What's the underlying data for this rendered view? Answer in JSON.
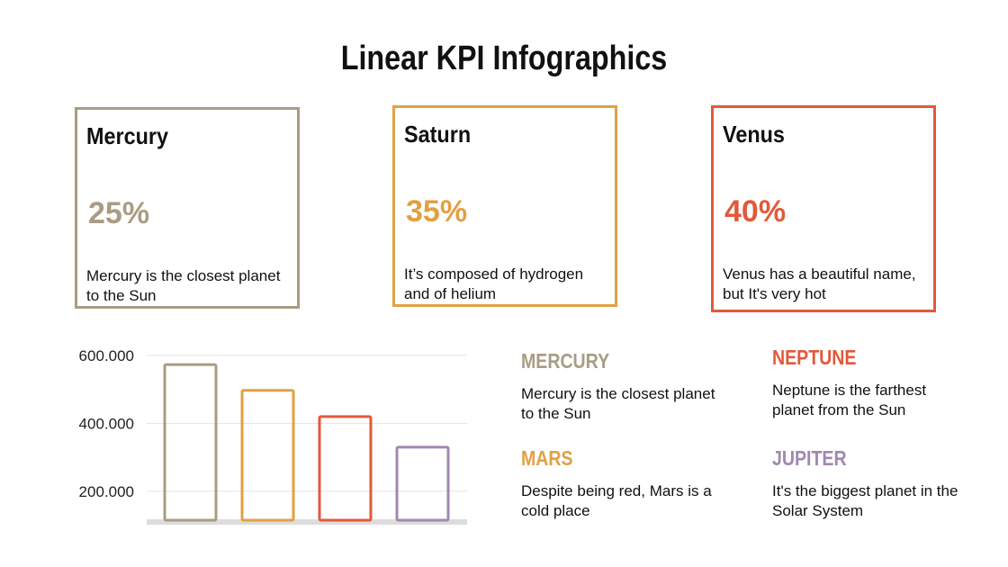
{
  "title": "Linear KPI Infographics",
  "cards": [
    {
      "name": "Mercury",
      "pct": "25%",
      "desc": "Mercury is the closest planet to the Sun",
      "color": "#a89c84"
    },
    {
      "name": "Saturn",
      "pct": "35%",
      "desc": "It’s composed of hydrogen and of helium",
      "color": "#e0a143"
    },
    {
      "name": "Venus",
      "pct": "40%",
      "desc": "Venus has a beautiful name, but It's very hot",
      "color": "#e2593a"
    }
  ],
  "legend": [
    {
      "name": "MERCURY",
      "desc": "Mercury is the closest planet to the Sun",
      "color": "#a89c84"
    },
    {
      "name": "NEPTUNE",
      "desc": "Neptune is the farthest planet from the Sun",
      "color": "#e2593a"
    },
    {
      "name": "MARS",
      "desc": "Despite being red, Mars is a cold place",
      "color": "#e0a143"
    },
    {
      "name": "JUPITER",
      "desc": "It's the biggest planet in the Solar System",
      "color": "#a088b0"
    }
  ],
  "chart_data": {
    "type": "bar",
    "values": [
      573000,
      497000,
      420000,
      330000
    ],
    "colors": [
      "#a89c84",
      "#e0a143",
      "#e2593a",
      "#a088b0"
    ],
    "yticks": [
      "200.000",
      "400.000",
      "600.000"
    ],
    "ytick_values": [
      200000,
      400000,
      600000
    ],
    "ylim": [
      115000,
      600000
    ],
    "grid": true
  }
}
